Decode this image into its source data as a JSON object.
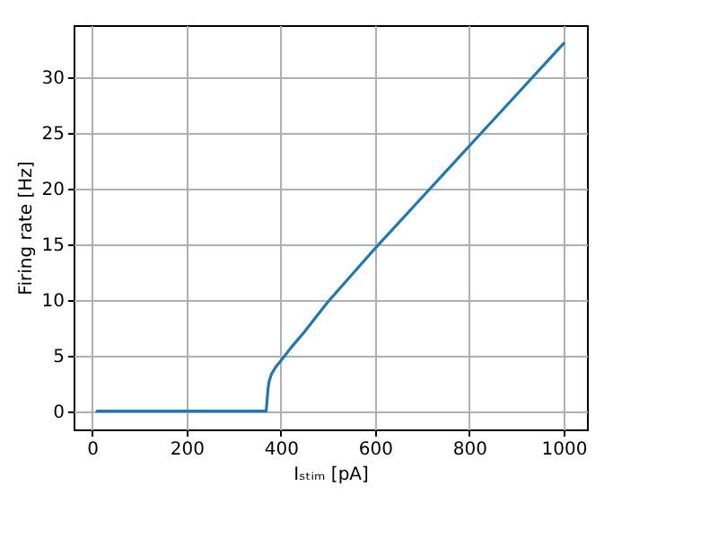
{
  "chart_data": {
    "type": "line",
    "xlabel": "Iₛₜᵢₘ [pA]",
    "ylabel": "Firing rate [Hz]",
    "x": [
      10,
      100,
      200,
      300,
      369,
      371,
      373,
      375,
      380,
      390,
      400,
      420,
      450,
      500,
      550,
      600,
      700,
      800,
      900,
      1000
    ],
    "series": [
      {
        "color": "#1f77b4",
        "values": [
          0,
          0,
          0,
          0,
          0,
          1.0,
          2.0,
          2.6,
          3.3,
          4.0,
          4.5,
          5.6,
          7.1,
          9.8,
          12.2,
          14.6,
          19.2,
          23.8,
          28.4,
          33
        ]
      }
    ],
    "xlim": [
      -39.5,
      1049.5
    ],
    "ylim": [
      -1.65,
      34.65
    ],
    "xticks": [
      0,
      200,
      400,
      600,
      800,
      1000
    ],
    "yticks": [
      0,
      5,
      10,
      15,
      20,
      25,
      30
    ],
    "grid": true,
    "marker": "none",
    "line_style": "solid"
  }
}
